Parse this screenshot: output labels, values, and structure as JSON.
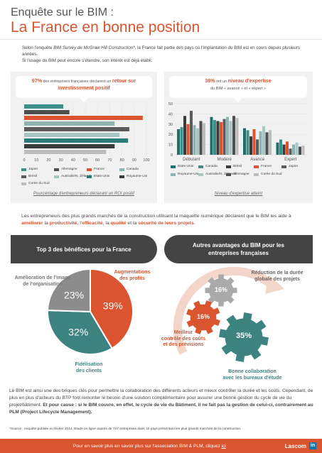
{
  "title": {
    "line1": "Enquête sur le BIM :",
    "line2": "La France en bonne position"
  },
  "intro": {
    "p1_a": "Selon l'enquête ",
    "p1_b": "BIM Survey de McGraw Hill Construction*",
    "p1_c": ", la France fait partie des pays où l'implantation du BIM est en cours depuis plusieurs années.",
    "p2": "Si l'usage du BIM peut encore s'étendre, son intérêt est déjà établi."
  },
  "box1": {
    "pct": "97%",
    "text1": " des entreprises françaises déclarent un ",
    "text2": "retour sur investissement positif"
  },
  "box2": {
    "pct": "38%",
    "text1": " ont un ",
    "text2": "niveau d'expertise",
    "text3": "du BIM « avancé » et « expert »"
  },
  "colors": {
    "Etats-Unis": "#1f6f6b",
    "Canada": "#3d8f8a",
    "Brésil": "#3a3a3a",
    "France": "#d9542f",
    "Japon": "#5b5b5b",
    "Royaume-Uni": "#8fb3b1",
    "Australie/N. Zélande": "#a8c7c4",
    "Allemagne": "#4e4e4e",
    "Corée du Sud": "#bdbdbd",
    "Etats-Unis ": "#2a7b76"
  },
  "chart_data": [
    {
      "type": "bar",
      "orientation": "horizontal",
      "xlim": [
        0,
        100
      ],
      "xticks": [
        "0",
        "10",
        "20",
        "30",
        "40",
        "50",
        "60",
        "70",
        "80",
        "90",
        "100"
      ],
      "series": [
        {
          "name": "Japon",
          "value": 32,
          "color": "#3d8f8a"
        },
        {
          "name": "Allemagne",
          "value": 37,
          "color": "#4e4e4e"
        },
        {
          "name": "France",
          "value": 97,
          "color": "#d9542f"
        },
        {
          "name": "Canada",
          "value": 74,
          "color": "#8fb3b1"
        },
        {
          "name": "Brésil",
          "value": 86,
          "color": "#5b5b5b"
        },
        {
          "name": "Australie/N. Zélande",
          "value": 78,
          "color": "#a8c7c4"
        },
        {
          "name": "Etats-Unis",
          "value": 85,
          "color": "#2a7b76"
        },
        {
          "name": "Royaume-Uni",
          "value": 74,
          "color": "#3a3a3a"
        },
        {
          "name": "Corée du Sud",
          "value": 67,
          "color": "#bdbdbd"
        }
      ],
      "caption": "Pourcentage d'entrepreneurs déclarant un ROI positif"
    },
    {
      "type": "bar",
      "orientation": "vertical",
      "categories": [
        "Débutant",
        "Modéré",
        "Avancé",
        "Expert"
      ],
      "ylim": [
        0,
        50
      ],
      "yticks": [
        "0",
        "10",
        "20",
        "30",
        "40",
        "50"
      ],
      "series": [
        {
          "name": "Etats-Unis",
          "color": "#1f6f6b",
          "values": [
            25,
            37,
            26,
            12
          ]
        },
        {
          "name": "Canada",
          "color": "#3d8f8a",
          "values": [
            27,
            34,
            24,
            15
          ]
        },
        {
          "name": "Brésil",
          "color": "#3a3a3a",
          "values": [
            38,
            33,
            18,
            10
          ]
        },
        {
          "name": "France",
          "color": "#d9542f",
          "values": [
            30,
            32,
            25,
            13
          ]
        },
        {
          "name": "Japon",
          "color": "#5b5b5b",
          "values": [
            43,
            35,
            15,
            6
          ]
        },
        {
          "name": "Royaume-Uni",
          "color": "#8fb3b1",
          "values": [
            29,
            37,
            23,
            10
          ]
        },
        {
          "name": "Australie/N. Zélande",
          "color": "#a8c7c4",
          "values": [
            26,
            33,
            28,
            12
          ]
        },
        {
          "name": "Allemagne",
          "color": "#4e4e4e",
          "values": [
            33,
            38,
            22,
            8
          ]
        },
        {
          "name": "Corée du Sud",
          "color": "#bdbdbd",
          "values": [
            31,
            36,
            24,
            9
          ]
        }
      ],
      "caption": "Niveau d'expertise atteint"
    }
  ],
  "legend1": [
    "Japon",
    "Allemagne",
    "France",
    "Canada",
    "Brésil",
    "Australie/N. Zélande",
    "Etats-Unis",
    "Royaume-Uni",
    "Corée du Sud"
  ],
  "legend2": [
    "Etats-Unis",
    "Canada",
    "Brésil",
    "France",
    "Japon",
    "Royaume-Uni",
    "Australie/N. Zélande",
    "Allemagne",
    "Corée du Sud"
  ],
  "middle": {
    "a": "Les entrepreneurs des plus grands marchés de la construction utilisant la maquette numérique déclarent que le BIM les aide à ",
    "b": "améliorer",
    "c": " la ",
    "d": "productivité",
    "e": ", l'",
    "f": "efficacité",
    "g": ", la ",
    "h": "qualité",
    "i": " et la ",
    "j": "sécurité de leurs projets",
    "k": "."
  },
  "pie": {
    "heading": "Top 3 des bénéfices pour la France",
    "slices": [
      {
        "label": "Augmentations des profits",
        "value": 39,
        "text": "39%",
        "color": "#d9542f"
      },
      {
        "label": "Fidélisation des clients",
        "value": 32,
        "text": "32%",
        "color": "#3d8480"
      },
      {
        "label": "Amélioration de l'image de l'organisation",
        "value": 23,
        "text": "23%",
        "color": "#8c8c8c"
      }
    ],
    "labels": {
      "profits_1": "Augmentations",
      "profits_2": "des profits",
      "image_1": "Amélioration de l'image",
      "image_2": "de l'organisation",
      "fidel_1": "Fidélisation",
      "fidel_2": "des clients"
    }
  },
  "gears": {
    "heading_1": "Autres avantages du BIM pour les",
    "heading_2": "entreprises françaises",
    "g1": {
      "text": "16%",
      "l1": "Réduction de la durée",
      "l2": "globale des projets"
    },
    "g2": {
      "text": "16%",
      "l1": "Meilleur",
      "l2": "contrôle des coûts",
      "l3": "et des prévisions"
    },
    "g3": {
      "text": "35%",
      "l1": "Bonne collaboration",
      "l2": "avec les bureaux d'étude"
    }
  },
  "bottom": {
    "a": "Le BIM est ainsi une des briques clés pour permettre la collaboration des différents acteurs et mieux contrôler la durée et les coûts. Cependant, de plus en plus d'acteurs du BTP font remonter le besoin d'une solution complémentaire pour assurer une bonne gestion du cycle de vie du projet/bâtiment. ",
    "b": "Et pour cause : si le BIM couvre, en effet, le cycle de vie du Bâtiment, il ne fait pas la gestion de celui-ci, contrairement au PLM (Project Lifecycle Management)."
  },
  "source": "*Source : enquête publiée en février 2014. Etude en ligne auprès de 727 entreprises dans 10 pays présentant les plus grands marchés de la construction.",
  "footer": {
    "text": "Pour en savoir plus en savoir plus sur l'association BIM & PLM, cliquez ",
    "link": "ici",
    "brand": "Lascom",
    "social": "in"
  }
}
